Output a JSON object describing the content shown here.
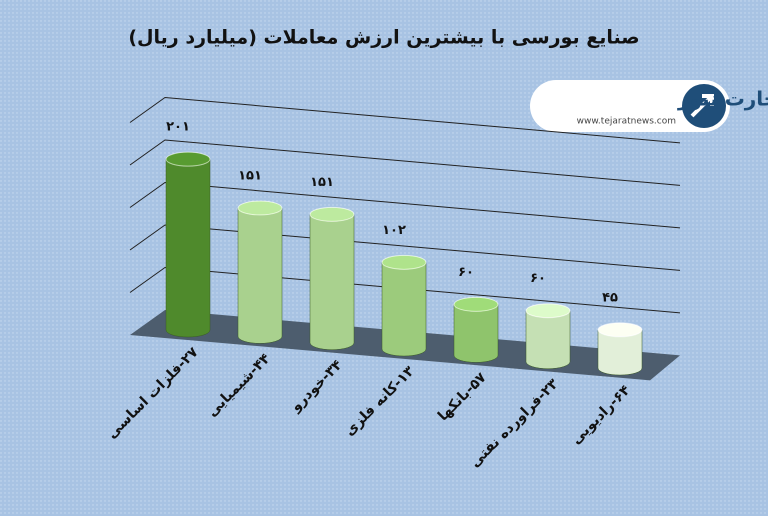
{
  "chart_data": {
    "type": "bar3d",
    "title": "صنایع بورسی با بیشترین ارزش معاملات  (میلیارد ریال)",
    "categories": [
      "۲۷-فلزات اساسی",
      "۴۴-شیمیایی",
      "۳۴-خودرو",
      "۱۳-کانه فلزی",
      "۵۷-بانکها",
      "۲۳-فراورده نفتی",
      "۶۴-رادیویی"
    ],
    "values": [
      201,
      151,
      151,
      102,
      60,
      60,
      45
    ],
    "value_labels": [
      "۲۰۱",
      "۱۵۱",
      "۱۵۱",
      "۱۰۲",
      "۶۰",
      "۶۰",
      "۴۵"
    ],
    "colors": [
      "#4f8a2c",
      "#a9d18e",
      "#a9d18e",
      "#9ccb7c",
      "#8fc46c",
      "#c5e0b4",
      "#e2efd9"
    ],
    "ylim": [
      0,
      250
    ],
    "yticks": [
      0,
      50,
      100,
      150,
      200,
      250
    ],
    "grid": true
  },
  "logo": {
    "name": "تجارت نیوز",
    "url": "www.tejaratnews.com"
  }
}
